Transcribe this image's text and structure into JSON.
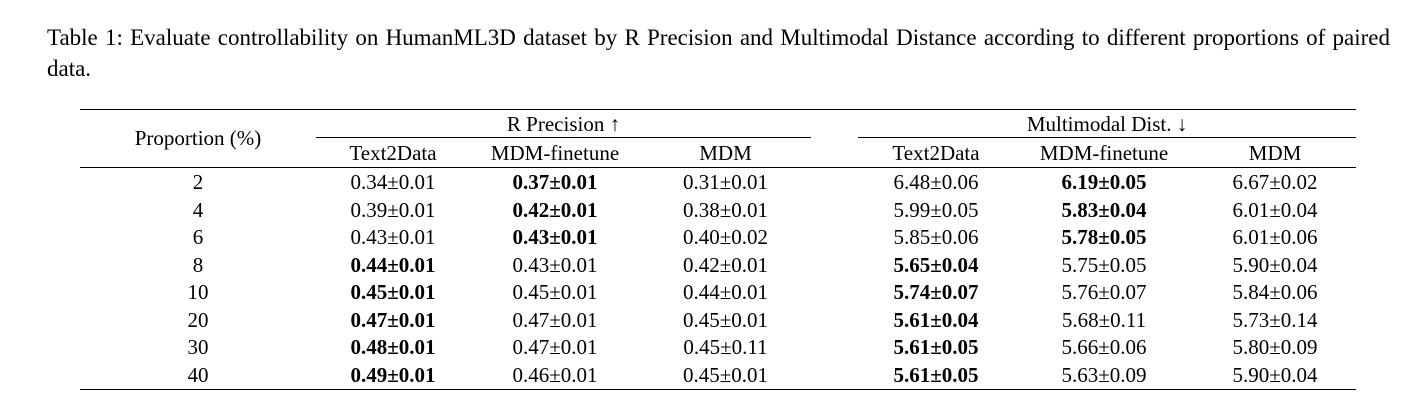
{
  "caption": "Table 1: Evaluate controllability on HumanML3D dataset by R Precision and Multimodal Distance according to different proportions of paired data.",
  "table": {
    "row_header": "Proportion (%)",
    "groups": [
      {
        "label": "R Precision ↑"
      },
      {
        "label": "Multimodal Dist. ↓"
      }
    ],
    "subheaders": [
      "Text2Data",
      "MDM-finetune",
      "MDM",
      "Text2Data",
      "MDM-finetune",
      "MDM"
    ],
    "rows": [
      {
        "proportion": "2",
        "cells": [
          {
            "v": "0.34±0.01",
            "bold": false
          },
          {
            "v": "0.37±0.01",
            "bold": true
          },
          {
            "v": "0.31±0.01",
            "bold": false
          },
          {
            "v": "6.48±0.06",
            "bold": false
          },
          {
            "v": "6.19±0.05",
            "bold": true
          },
          {
            "v": "6.67±0.02",
            "bold": false
          }
        ]
      },
      {
        "proportion": "4",
        "cells": [
          {
            "v": "0.39±0.01",
            "bold": false
          },
          {
            "v": "0.42±0.01",
            "bold": true
          },
          {
            "v": "0.38±0.01",
            "bold": false
          },
          {
            "v": "5.99±0.05",
            "bold": false
          },
          {
            "v": "5.83±0.04",
            "bold": true
          },
          {
            "v": "6.01±0.04",
            "bold": false
          }
        ]
      },
      {
        "proportion": "6",
        "cells": [
          {
            "v": "0.43±0.01",
            "bold": false
          },
          {
            "v": "0.43±0.01",
            "bold": true
          },
          {
            "v": "0.40±0.02",
            "bold": false
          },
          {
            "v": "5.85±0.06",
            "bold": false
          },
          {
            "v": "5.78±0.05",
            "bold": true
          },
          {
            "v": "6.01±0.06",
            "bold": false
          }
        ]
      },
      {
        "proportion": "8",
        "cells": [
          {
            "v": "0.44±0.01",
            "bold": true
          },
          {
            "v": "0.43±0.01",
            "bold": false
          },
          {
            "v": "0.42±0.01",
            "bold": false
          },
          {
            "v": "5.65±0.04",
            "bold": true
          },
          {
            "v": "5.75±0.05",
            "bold": false
          },
          {
            "v": "5.90±0.04",
            "bold": false
          }
        ]
      },
      {
        "proportion": "10",
        "cells": [
          {
            "v": "0.45±0.01",
            "bold": true
          },
          {
            "v": "0.45±0.01",
            "bold": false
          },
          {
            "v": "0.44±0.01",
            "bold": false
          },
          {
            "v": "5.74±0.07",
            "bold": true
          },
          {
            "v": "5.76±0.07",
            "bold": false
          },
          {
            "v": "5.84±0.06",
            "bold": false
          }
        ]
      },
      {
        "proportion": "20",
        "cells": [
          {
            "v": "0.47±0.01",
            "bold": true
          },
          {
            "v": "0.47±0.01",
            "bold": false
          },
          {
            "v": "0.45±0.01",
            "bold": false
          },
          {
            "v": "5.61±0.04",
            "bold": true
          },
          {
            "v": "5.68±0.11",
            "bold": false
          },
          {
            "v": "5.73±0.14",
            "bold": false
          }
        ]
      },
      {
        "proportion": "30",
        "cells": [
          {
            "v": "0.48±0.01",
            "bold": true
          },
          {
            "v": "0.47±0.01",
            "bold": false
          },
          {
            "v": "0.45±0.11",
            "bold": false
          },
          {
            "v": "5.61±0.05",
            "bold": true
          },
          {
            "v": "5.66±0.06",
            "bold": false
          },
          {
            "v": "5.80±0.09",
            "bold": false
          }
        ]
      },
      {
        "proportion": "40",
        "cells": [
          {
            "v": "0.49±0.01",
            "bold": true
          },
          {
            "v": "0.46±0.01",
            "bold": false
          },
          {
            "v": "0.45±0.01",
            "bold": false
          },
          {
            "v": "5.61±0.05",
            "bold": true
          },
          {
            "v": "5.63±0.09",
            "bold": false
          },
          {
            "v": "5.90±0.04",
            "bold": false
          }
        ]
      }
    ]
  }
}
